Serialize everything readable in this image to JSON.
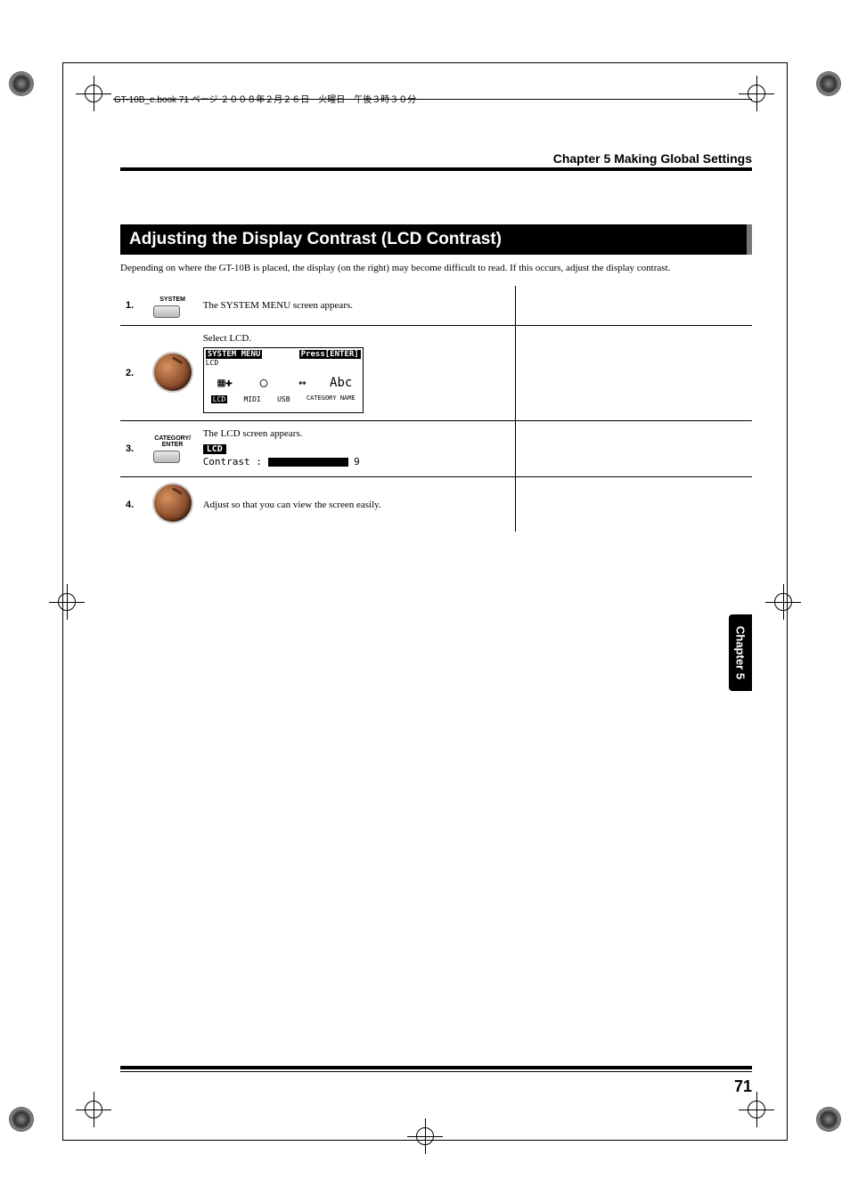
{
  "header": {
    "book_line": "GT-10B_e.book  71 ページ  ２００８年２月２６日　火曜日　午後３時３０分"
  },
  "chapter_heading": "Chapter 5 Making Global Settings",
  "section_title": "Adjusting the Display Contrast (LCD Contrast)",
  "intro": "Depending on where the GT-10B is placed, the display (on the right) may become difficult to read. If this occurs, adjust the display contrast.",
  "steps": [
    {
      "num": "1.",
      "icon_label": "SYSTEM",
      "icon_type": "button",
      "desc": "The SYSTEM MENU screen appears.",
      "screen": null
    },
    {
      "num": "2.",
      "icon_type": "dial",
      "desc": "Select LCD.",
      "screen": {
        "type": "menu",
        "title_left": "SYSTEM MENU",
        "title_right": "Press[ENTER]",
        "sub": "LCD",
        "icons": [
          "▦✚",
          "◯",
          "↔",
          "Abc"
        ],
        "labels": [
          "LCD",
          "MIDI",
          "USB",
          "CATEGORY NAME"
        ]
      }
    },
    {
      "num": "3.",
      "icon_label": "CATEGORY/\nENTER",
      "icon_type": "button",
      "desc": "The LCD screen appears.",
      "screen": {
        "type": "lcd",
        "tab": "LCD",
        "line": "Contrast :",
        "value": "9"
      }
    },
    {
      "num": "4.",
      "icon_type": "dial",
      "desc": "Adjust so that you can view the screen easily.",
      "screen": null
    }
  ],
  "side_tab": "Chapter 5",
  "page_number": "71"
}
